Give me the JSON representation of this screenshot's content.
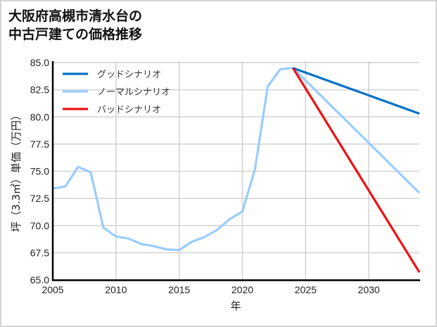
{
  "title": {
    "line1": "大阪府高槻市清水台の",
    "line2": "中古戸建ての価格推移"
  },
  "colors": {
    "good": "#0070c8",
    "normal": "#99ccff",
    "bad": "#ee1111",
    "grid": "#d3d3d3",
    "axis": "#000000",
    "frame": "#d4d4d4"
  },
  "chart_data": {
    "type": "line",
    "title": "大阪府高槻市清水台の中古戸建ての価格推移",
    "xlabel": "年",
    "ylabel": "坪（3.3㎡）単価（万円）",
    "xlim": [
      2005,
      2034
    ],
    "ylim": [
      65.0,
      85.0
    ],
    "grid": true,
    "legend_position": "upper left",
    "x_ticks": [
      "2005",
      "2010",
      "2015",
      "2020",
      "2025",
      "2030"
    ],
    "y_ticks": [
      "65.0",
      "67.5",
      "70.0",
      "72.5",
      "75.0",
      "77.5",
      "80.0",
      "82.5",
      "85.0"
    ],
    "series": [
      {
        "name": "グッドシナリオ",
        "color": "#0070c8",
        "x": [
          2024,
          2034
        ],
        "values": [
          84.5,
          80.3
        ]
      },
      {
        "name": "ノーマルシナリオ",
        "color": "#99ccff",
        "x": [
          2005,
          2006,
          2007,
          2008,
          2009,
          2010,
          2011,
          2012,
          2013,
          2014,
          2015,
          2016,
          2017,
          2018,
          2019,
          2020,
          2021,
          2022,
          2023,
          2024,
          2034
        ],
        "values": [
          73.4,
          73.6,
          75.4,
          74.9,
          69.8,
          69.0,
          68.8,
          68.3,
          68.1,
          67.8,
          67.75,
          68.5,
          68.95,
          69.6,
          70.6,
          71.3,
          75.2,
          82.8,
          84.4,
          84.5,
          73.0
        ]
      },
      {
        "name": "バッドシナリオ",
        "color": "#ee1111",
        "x": [
          2024,
          2034
        ],
        "values": [
          84.5,
          65.7
        ]
      }
    ]
  }
}
